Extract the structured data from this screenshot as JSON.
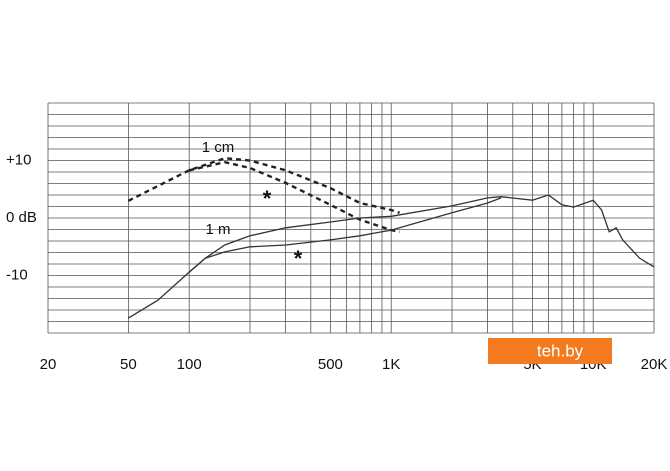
{
  "chart_data": {
    "type": "line",
    "log_x": true,
    "grid": true,
    "xlim": [
      20,
      20000
    ],
    "ylim": [
      -20,
      20
    ],
    "xticks": [
      20,
      50,
      100,
      500,
      {
        "value": 1000,
        "label": "1K"
      },
      {
        "value": 5000,
        "label": "5K"
      },
      {
        "value": 10000,
        "label": "10K"
      },
      {
        "value": 20000,
        "label": "20K"
      }
    ],
    "yticks": [
      {
        "value": 10,
        "label": "+10"
      },
      {
        "value": 0,
        "label": "0 dB"
      },
      {
        "value": -10,
        "label": "-10"
      }
    ],
    "xgrid": [
      20,
      50,
      100,
      200,
      300,
      400,
      500,
      600,
      700,
      800,
      900,
      1000,
      2000,
      3000,
      4000,
      5000,
      6000,
      7000,
      8000,
      9000,
      10000,
      20000
    ],
    "ygrid": [
      -20,
      -18,
      -16,
      -14,
      -12,
      -10,
      -8,
      -6,
      -4,
      -2,
      0,
      2,
      4,
      6,
      8,
      10,
      12,
      14,
      16,
      18,
      20
    ],
    "annotations": [
      "1 cm",
      "1 m",
      "*",
      "*"
    ],
    "watermark": "teh.by",
    "series": [
      {
        "color": "#222222",
        "dashed": true,
        "x": [
          50,
          100,
          150,
          200,
          300,
          500,
          700,
          1000,
          1100
        ],
        "values": [
          3.0,
          8.3,
          10.4,
          10.0,
          8.3,
          5.2,
          2.6,
          1.4,
          0.9
        ]
      },
      {
        "color": "#222222",
        "dashed": true,
        "x": [
          100,
          150,
          200,
          300,
          500,
          700,
          1000,
          1100
        ],
        "values": [
          8.3,
          9.7,
          8.7,
          6.1,
          2.3,
          -0.3,
          -2.1,
          -2.4
        ]
      },
      {
        "color": "#333333",
        "dashed": false,
        "x": [
          50,
          70,
          100,
          120,
          150,
          200,
          300,
          500,
          700,
          1000,
          2000,
          3000,
          3500,
          5000,
          6000,
          7000,
          8000,
          10000,
          11000,
          12000,
          13000,
          14000,
          17000,
          20000
        ],
        "values": [
          -17.4,
          -14.3,
          -9.4,
          -7.0,
          -4.7,
          -3.1,
          -1.7,
          -0.7,
          0,
          0.3,
          2.1,
          3.5,
          3.7,
          3.1,
          4.0,
          2.3,
          1.9,
          3.1,
          1.4,
          -2.4,
          -1.7,
          -3.8,
          -7.0,
          -8.5
        ]
      },
      {
        "color": "#333333",
        "dashed": false,
        "x": [
          100,
          120,
          150,
          200,
          300,
          500,
          700,
          1000,
          2000,
          3000,
          3500
        ],
        "values": [
          -9.4,
          -7.0,
          -5.9,
          -5.0,
          -4.7,
          -3.8,
          -3.1,
          -2.1,
          0.9,
          2.6,
          3.5
        ]
      }
    ]
  }
}
